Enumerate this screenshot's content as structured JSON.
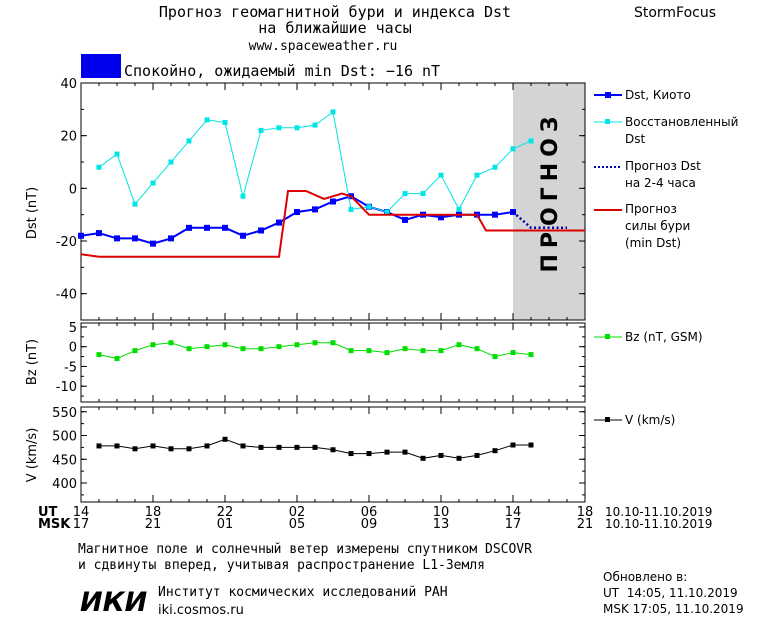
{
  "header": {
    "title_line1": "Прогноз геомагнитной бури и индекса Dst",
    "title_line2": "на ближайшие часы",
    "url": "www.spaceweather.ru",
    "brand": "StormFocus"
  },
  "status": {
    "text": "Спокойно, ожидаемый min Dst: −16 nT",
    "color": "#0000ee"
  },
  "legend": {
    "dst_kyoto": "Dst, Киото",
    "restored_1": "Восстановленный",
    "restored_2": "Dst",
    "forecast_dst_1": "Прогноз Dst",
    "forecast_dst_2": "на 2-4 часа",
    "storm_1": "Прогноз",
    "storm_2": "силы бури",
    "storm_3": "(min Dst)",
    "bz": "Bz (nT, GSM)",
    "v": "V (km/s)"
  },
  "forecast_watermark": "ПРОГНОЗ",
  "axes": {
    "dst_ylabel": "Dst (nT)",
    "bz_ylabel": "Bz (nT)",
    "v_ylabel": "V (km/s)",
    "ut_label": "UT",
    "msk_label": "MSK",
    "ut_ticks": [
      "14",
      "18",
      "22",
      "02",
      "06",
      "10",
      "14",
      "18"
    ],
    "msk_ticks": [
      "17",
      "21",
      "01",
      "05",
      "09",
      "13",
      "17",
      "21"
    ],
    "ut_range": "10.10-11.10.2019",
    "msk_range": "10.10-11.10.2019"
  },
  "footer": {
    "note_1": "Магнитное поле и солнечный ветер измерены спутником DSCOVR",
    "note_2": "и сдвинуты вперед, учитывая распространение L1-Земля",
    "logo": "ИКИ",
    "institute": "Институт космических исследований РАН",
    "site": "iki.cosmos.ru",
    "updated_label": "Обновлено в:",
    "updated_ut": "UT  14:05, 11.10.2019",
    "updated_msk": "MSK 17:05, 11.10.2019"
  },
  "chart_data": [
    {
      "type": "line",
      "name_panel": "dst",
      "x_unit": "hours since 14 UT 10.10",
      "xlim": [
        0,
        28
      ],
      "ylim": [
        -50,
        40
      ],
      "yticks": [
        -40,
        -20,
        0,
        20,
        40
      ],
      "forecast_start": 24,
      "series": [
        {
          "name": "Dst, Киото",
          "color": "#0000ff",
          "marker": "square",
          "x": [
            0,
            1,
            2,
            3,
            4,
            5,
            6,
            7,
            8,
            9,
            10,
            11,
            12,
            13,
            14,
            15,
            16,
            17,
            18,
            19,
            20,
            21,
            22,
            23,
            24
          ],
          "y": [
            -18,
            -17,
            -19,
            -19,
            -21,
            -19,
            -15,
            -15,
            -15,
            -18,
            -16,
            -13,
            -9,
            -8,
            -5,
            -3,
            -7,
            -9,
            -12,
            -10,
            -11,
            -10,
            -10,
            -10,
            -9
          ]
        },
        {
          "name": "Восстановленный Dst",
          "color": "#00e5e5",
          "marker": "square",
          "x": [
            1,
            2,
            3,
            4,
            5,
            6,
            7,
            8,
            9,
            10,
            11,
            12,
            13,
            14,
            15,
            16,
            17,
            18,
            19,
            20,
            21,
            22,
            23,
            24,
            25
          ],
          "y": [
            8,
            13,
            -6,
            2,
            10,
            18,
            26,
            25,
            -3,
            22,
            23,
            23,
            24,
            29,
            -8,
            -7,
            -9,
            -2,
            -2,
            5,
            -8,
            5,
            8,
            15,
            18
          ]
        },
        {
          "name": "Прогноз Dst на 2-4 часа",
          "color": "#0000aa",
          "dotted": true,
          "x": [
            24,
            25,
            26,
            27
          ],
          "y": [
            -9,
            -15,
            -15,
            -15
          ]
        },
        {
          "name": "Прогноз силы бури (min Dst)",
          "color": "#dd0000",
          "x": [
            0,
            1,
            11,
            11.5,
            12.5,
            13.5,
            14.5,
            15,
            16,
            17,
            17.5,
            21,
            22,
            22.5,
            28
          ],
          "y": [
            -25,
            -26,
            -26,
            -1,
            -1,
            -4,
            -2,
            -3,
            -10,
            -10,
            -10,
            -10,
            -10,
            -16,
            -16
          ]
        }
      ]
    },
    {
      "type": "line",
      "name_panel": "bz",
      "xlim": [
        0,
        28
      ],
      "ylim": [
        -14,
        6
      ],
      "yticks": [
        -10,
        -5,
        0,
        5
      ],
      "series": [
        {
          "name": "Bz (nT, GSM)",
          "color": "#00dd00",
          "marker": "square",
          "x": [
            1,
            2,
            3,
            4,
            5,
            6,
            7,
            8,
            9,
            10,
            11,
            12,
            13,
            14,
            15,
            16,
            17,
            18,
            19,
            20,
            21,
            22,
            23,
            24,
            25
          ],
          "y": [
            -2,
            -3,
            -1,
            0.5,
            1,
            -0.5,
            0,
            0.5,
            -0.5,
            -0.5,
            0,
            0.5,
            1,
            1,
            -1,
            -1,
            -1.5,
            -0.5,
            -1,
            -1,
            0.5,
            -0.5,
            -2.5,
            -1.5,
            -2
          ]
        }
      ]
    },
    {
      "type": "line",
      "name_panel": "v",
      "xlim": [
        0,
        28
      ],
      "ylim": [
        360,
        560
      ],
      "yticks": [
        400,
        450,
        500,
        550
      ],
      "series": [
        {
          "name": "V (km/s)",
          "color": "#000000",
          "marker": "square",
          "x": [
            1,
            2,
            3,
            4,
            5,
            6,
            7,
            8,
            9,
            10,
            11,
            12,
            13,
            14,
            15,
            16,
            17,
            18,
            19,
            20,
            21,
            22,
            23,
            24,
            25
          ],
          "y": [
            478,
            478,
            472,
            478,
            472,
            472,
            478,
            492,
            478,
            475,
            475,
            475,
            475,
            470,
            462,
            462,
            465,
            465,
            452,
            458,
            452,
            458,
            468,
            480,
            480
          ]
        }
      ]
    }
  ]
}
